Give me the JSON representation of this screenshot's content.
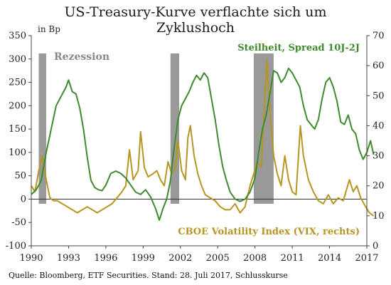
{
  "chart_data": {
    "type": "line",
    "title_line1": "US-Treasury-Kurve verflachte sich um",
    "title_line2": "Zyklushoch",
    "left_unit_label": "in Bp",
    "source": "Quelle: Bloomberg, ETF Securities. Stand: 28. Juli 2017, Schlusskurse",
    "recession_label": "Rezession",
    "xlim": [
      1990,
      2017
    ],
    "x_ticks": [
      "1990",
      "1993",
      "1996",
      "1999",
      "2002",
      "2005",
      "2008",
      "2011",
      "2014",
      "2017"
    ],
    "y_left": {
      "ylim": [
        -100,
        350
      ],
      "ticks": [
        "350",
        "300",
        "250",
        "200",
        "150",
        "100",
        "50",
        "0",
        "-50",
        "-100"
      ]
    },
    "y_right": {
      "ylim": [
        0,
        70
      ],
      "ticks": [
        "70",
        "60",
        "50",
        "40",
        "30",
        "20",
        "10",
        "0"
      ]
    },
    "recessions": [
      [
        1990.6,
        1991.2
      ],
      [
        2001.2,
        2001.9
      ],
      [
        2007.9,
        2009.5
      ]
    ],
    "series": [
      {
        "name": "Steilheit, Spread 10J-2J",
        "color": "#3f8a2c",
        "axis": "left",
        "x": [
          1990.0,
          1990.4,
          1990.8,
          1991.2,
          1991.6,
          1992.0,
          1992.4,
          1992.8,
          1993.0,
          1993.3,
          1993.6,
          1993.9,
          1994.2,
          1994.5,
          1994.8,
          1995.1,
          1995.4,
          1995.7,
          1996.0,
          1996.4,
          1996.8,
          1997.2,
          1997.6,
          1998.0,
          1998.4,
          1998.8,
          1999.2,
          1999.6,
          2000.0,
          2000.3,
          2000.6,
          2000.9,
          2001.2,
          2001.5,
          2001.8,
          2002.1,
          2002.4,
          2002.7,
          2003.0,
          2003.3,
          2003.6,
          2003.9,
          2004.2,
          2004.5,
          2004.8,
          2005.1,
          2005.4,
          2005.7,
          2006.0,
          2006.4,
          2006.8,
          2007.2,
          2007.6,
          2008.0,
          2008.3,
          2008.6,
          2008.9,
          2009.2,
          2009.5,
          2009.8,
          2010.1,
          2010.4,
          2010.7,
          2011.0,
          2011.3,
          2011.6,
          2011.9,
          2012.2,
          2012.5,
          2012.8,
          2013.1,
          2013.4,
          2013.7,
          2014.0,
          2014.3,
          2014.6,
          2014.9,
          2015.2,
          2015.5,
          2015.8,
          2016.1,
          2016.4,
          2016.7,
          2017.0,
          2017.3,
          2017.55
        ],
        "values": [
          10,
          20,
          40,
          100,
          150,
          200,
          220,
          240,
          255,
          230,
          225,
          195,
          150,
          90,
          40,
          25,
          20,
          18,
          30,
          55,
          60,
          55,
          45,
          30,
          15,
          10,
          20,
          5,
          -20,
          -45,
          -20,
          0,
          40,
          110,
          170,
          200,
          215,
          230,
          250,
          265,
          255,
          270,
          260,
          215,
          170,
          115,
          70,
          40,
          15,
          0,
          -5,
          0,
          15,
          45,
          100,
          150,
          180,
          225,
          275,
          270,
          250,
          260,
          280,
          270,
          255,
          240,
          200,
          170,
          160,
          150,
          170,
          215,
          250,
          260,
          240,
          210,
          165,
          160,
          180,
          150,
          140,
          105,
          85,
          100,
          125,
          95
        ]
      },
      {
        "name": "CBOE Volatility Index (VIX, rechts)",
        "color": "#b79522",
        "axis": "right",
        "x": [
          1990.0,
          1990.3,
          1990.6,
          1990.9,
          1991.2,
          1991.5,
          1991.8,
          1992.1,
          1992.5,
          1992.9,
          1993.3,
          1993.7,
          1994.1,
          1994.5,
          1994.9,
          1995.3,
          1995.7,
          1996.1,
          1996.5,
          1996.9,
          1997.3,
          1997.6,
          1997.9,
          1998.2,
          1998.6,
          1998.8,
          1999.1,
          1999.4,
          1999.8,
          2000.1,
          2000.4,
          2000.7,
          2001.0,
          2001.3,
          2001.6,
          2001.8,
          2002.1,
          2002.4,
          2002.6,
          2002.8,
          2003.1,
          2003.4,
          2003.7,
          2004.0,
          2004.4,
          2004.8,
          2005.2,
          2005.6,
          2006.0,
          2006.4,
          2006.8,
          2007.2,
          2007.6,
          2007.9,
          2008.2,
          2008.5,
          2008.8,
          2008.95,
          2009.2,
          2009.5,
          2009.8,
          2010.1,
          2010.4,
          2010.7,
          2011.0,
          2011.3,
          2011.65,
          2011.9,
          2012.3,
          2012.7,
          2013.1,
          2013.5,
          2013.9,
          2014.3,
          2014.7,
          2015.1,
          2015.6,
          2015.9,
          2016.2,
          2016.5,
          2016.9,
          2017.2,
          2017.55
        ],
        "values": [
          20,
          18,
          25,
          30,
          22,
          16,
          15,
          15,
          14,
          13,
          12,
          11,
          12,
          13,
          12,
          11,
          12,
          13,
          14,
          16,
          18,
          20,
          32,
          22,
          25,
          38,
          26,
          23,
          24,
          25,
          22,
          20,
          28,
          24,
          26,
          35,
          25,
          22,
          36,
          40,
          30,
          24,
          20,
          17,
          16,
          15,
          13,
          12,
          12,
          14,
          11,
          13,
          20,
          24,
          28,
          26,
          50,
          62,
          45,
          30,
          24,
          20,
          30,
          22,
          18,
          17,
          40,
          30,
          22,
          18,
          15,
          14,
          17,
          14,
          16,
          15,
          22,
          18,
          20,
          16,
          13,
          11,
          10
        ]
      }
    ],
    "grid": false,
    "legend": "inline labels"
  }
}
